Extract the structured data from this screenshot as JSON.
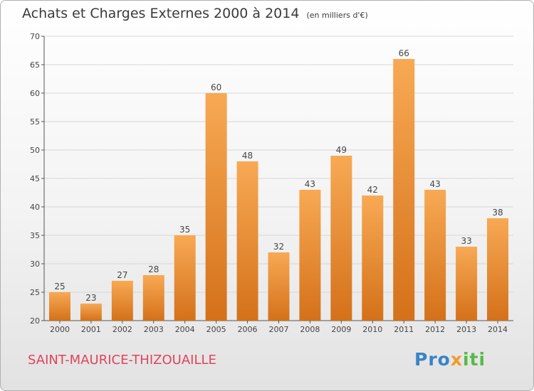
{
  "header": {
    "title": "Achats et Charges Externes 2000 à 2014",
    "subtitle": "(en milliers d'€)"
  },
  "footer": {
    "commune": "SAINT-MAURICE-THIZOUAILLE",
    "logo": "Proxiti"
  },
  "colors": {
    "bar_top": "#f8a954",
    "bar_bottom": "#d4711a",
    "commune_text": "#e0445a"
  },
  "chart_data": {
    "type": "bar",
    "title": "Achats et Charges Externes 2000 à 2014",
    "subtitle": "(en milliers d'€)",
    "categories": [
      "2000",
      "2001",
      "2002",
      "2003",
      "2004",
      "2005",
      "2006",
      "2007",
      "2008",
      "2009",
      "2010",
      "2011",
      "2012",
      "2013",
      "2014"
    ],
    "values": [
      25,
      23,
      27,
      28,
      35,
      60,
      48,
      32,
      43,
      49,
      42,
      66,
      43,
      33,
      38
    ],
    "ylim": [
      20,
      70
    ],
    "yticks": [
      20,
      25,
      30,
      35,
      40,
      45,
      50,
      55,
      60,
      65,
      70
    ],
    "grid": true,
    "legend": "none"
  }
}
